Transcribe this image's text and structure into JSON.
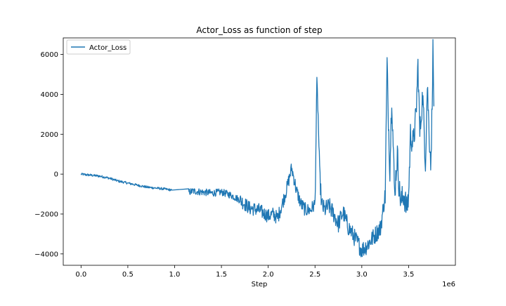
{
  "chart_data": {
    "type": "line",
    "title": "Actor_Loss as function of step",
    "xlabel": "Step",
    "ylabel": "",
    "x_offset_label": "1e6",
    "xlim": [
      -0.19,
      4.0
    ],
    "ylim": [
      -4570,
      6830
    ],
    "xticks": [
      0.0,
      0.5,
      1.0,
      1.5,
      2.0,
      2.5,
      3.0,
      3.5
    ],
    "xtick_labels": [
      "0.0",
      "0.5",
      "1.0",
      "1.5",
      "2.0",
      "2.5",
      "3.0",
      "3.5"
    ],
    "yticks": [
      -4000,
      -2000,
      0,
      2000,
      4000,
      6000
    ],
    "ytick_labels": [
      "−4000",
      "−2000",
      "0",
      "2000",
      "4000",
      "6000"
    ],
    "grid": false,
    "legend": {
      "position": "top-left",
      "entries": [
        "Actor_Loss"
      ]
    },
    "series": [
      {
        "name": "Actor_Loss",
        "color": "#1f77b4",
        "x": [
          0.0,
          0.05,
          0.1,
          0.2,
          0.3,
          0.4,
          0.5,
          0.6,
          0.7,
          0.8,
          0.9,
          0.97,
          1.15,
          1.2,
          1.3,
          1.4,
          1.5,
          1.6,
          1.7,
          1.75,
          1.8,
          1.9,
          2.0,
          2.05,
          2.1,
          2.15,
          2.2,
          2.25,
          2.28,
          2.3,
          2.35,
          2.4,
          2.45,
          2.5,
          2.52,
          2.53,
          2.55,
          2.57,
          2.6,
          2.65,
          2.7,
          2.75,
          2.8,
          2.85,
          2.9,
          2.95,
          3.0,
          3.05,
          3.1,
          3.15,
          3.2,
          3.25,
          3.27,
          3.28,
          3.3,
          3.32,
          3.35,
          3.38,
          3.4,
          3.42,
          3.45,
          3.48,
          3.5,
          3.52,
          3.55,
          3.58,
          3.6,
          3.62,
          3.65,
          3.68,
          3.7,
          3.72,
          3.74,
          3.76,
          3.77
        ],
        "y": [
          0,
          -30,
          -50,
          -100,
          -200,
          -350,
          -450,
          -550,
          -650,
          -700,
          -750,
          -800,
          -900,
          -850,
          -900,
          -950,
          -900,
          -1050,
          -1300,
          -1500,
          -1700,
          -1800,
          -2100,
          -2000,
          -2200,
          -1500,
          -700,
          300,
          -300,
          -800,
          -1500,
          -1800,
          -1800,
          -1500,
          4500,
          3500,
          0,
          -1500,
          -1800,
          -1600,
          -2000,
          -2500,
          -1900,
          -2600,
          -3000,
          -3400,
          -3800,
          -3600,
          -3300,
          -3000,
          -2700,
          -1000,
          5500,
          3500,
          200,
          4000,
          -1000,
          1000,
          -800,
          -1400,
          -1000,
          -1800,
          -1100,
          2000,
          1500,
          3000,
          5500,
          2000,
          4000,
          600,
          4500,
          2000,
          500,
          6200,
          3400
        ]
      }
    ]
  }
}
